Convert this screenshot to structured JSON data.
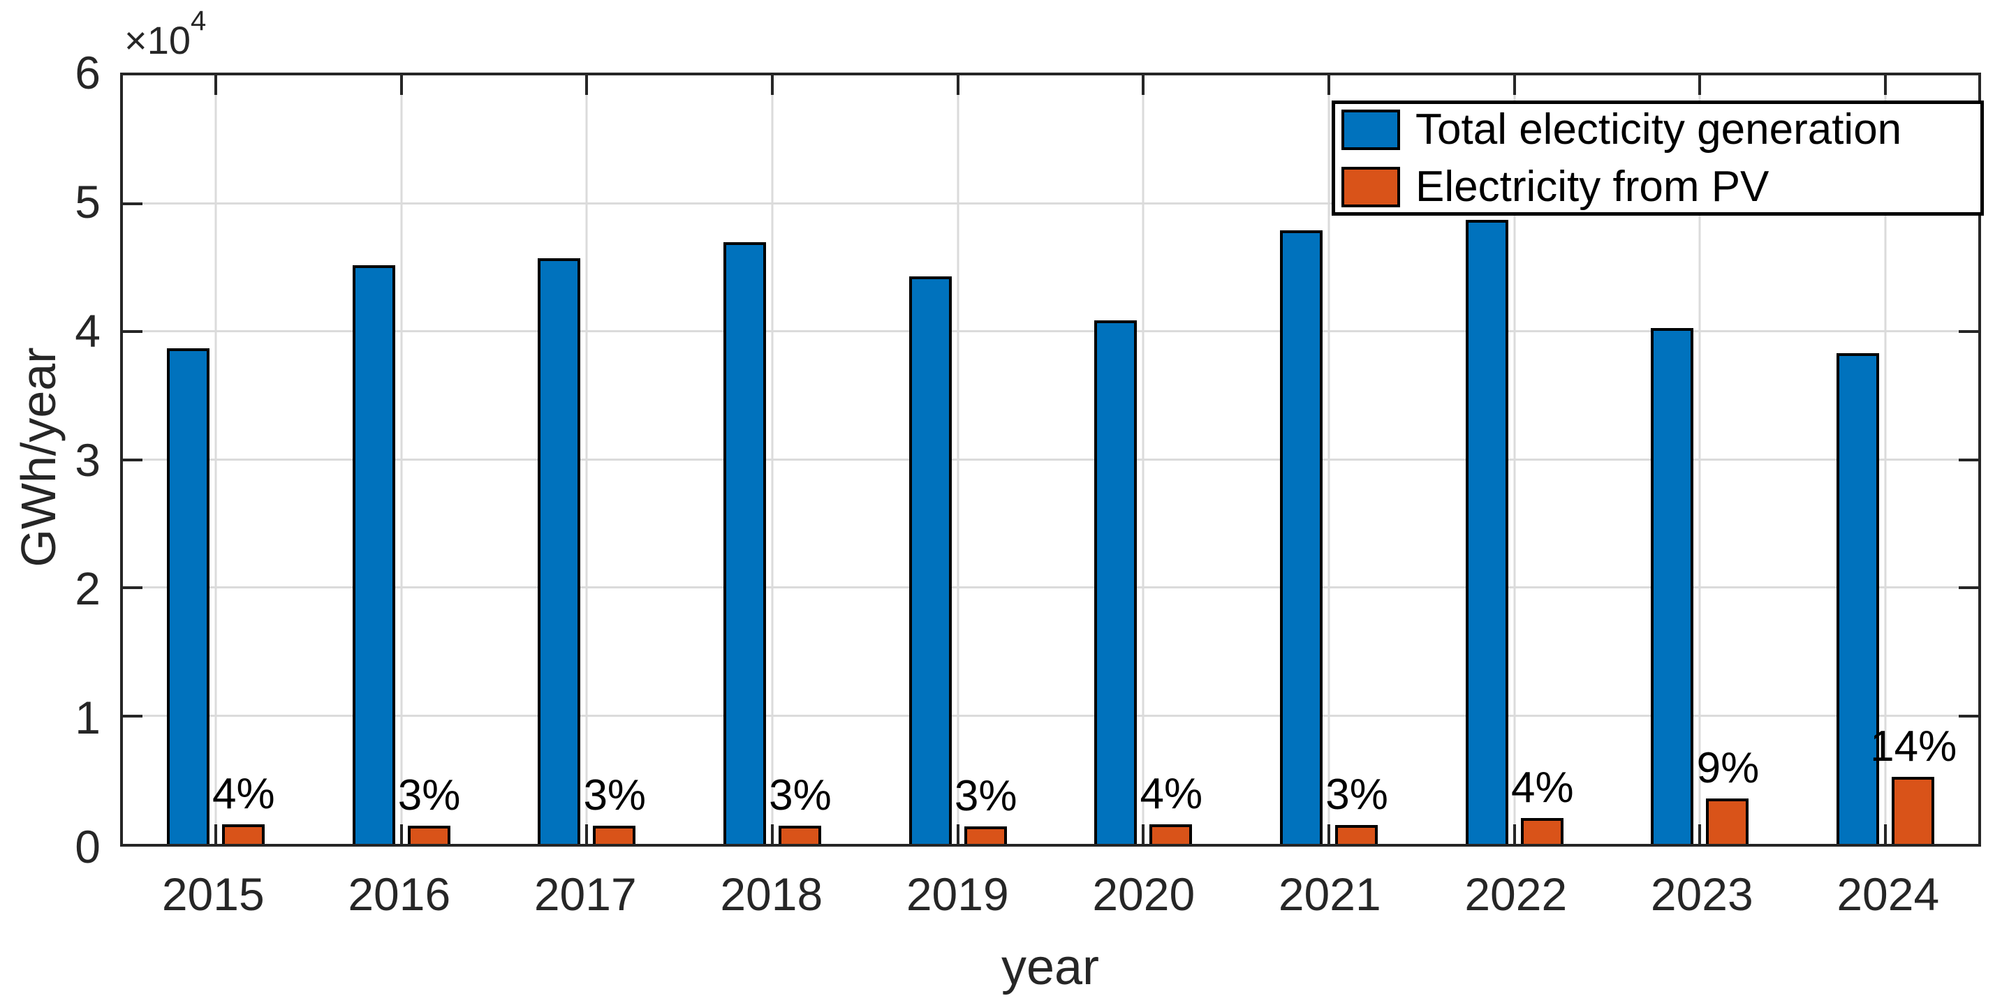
{
  "figure": {
    "y_axis_multiplier": {
      "base": "×10",
      "exponent": "4"
    }
  },
  "chart_data": {
    "type": "bar",
    "title": "",
    "xlabel": "year",
    "ylabel": "GWh/year",
    "categories": [
      "2015",
      "2016",
      "2017",
      "2018",
      "2019",
      "2020",
      "2021",
      "2022",
      "2023",
      "2024"
    ],
    "series": [
      {
        "name": "Total electicity generation",
        "color": "#0072BD",
        "values": [
          38700,
          45200,
          45700,
          47000,
          44300,
          40900,
          47900,
          48700,
          40300,
          38300
        ]
      },
      {
        "name": "Electricity from PV",
        "color": "#D95319",
        "values": [
          1500,
          1400,
          1400,
          1400,
          1350,
          1550,
          1450,
          2000,
          3550,
          5250
        ]
      }
    ],
    "bar_labels": {
      "description": "PV share of total generation, shown above the PV bars",
      "values": [
        "4%",
        "3%",
        "3%",
        "3%",
        "3%",
        "4%",
        "3%",
        "4%",
        "9%",
        "14%"
      ]
    },
    "ylim": [
      0,
      60000
    ],
    "yticks": [
      0,
      10000,
      20000,
      30000,
      40000,
      50000,
      60000
    ],
    "ytick_labels": [
      "0",
      "1",
      "2",
      "3",
      "4",
      "5",
      "6"
    ],
    "ytick_scale": 10000,
    "grid": true,
    "legend_position": "northeast",
    "colors": {
      "axis": "#262626",
      "grid": "#DBDBDB",
      "bar_edge": "#000000",
      "background": "#FFFFFF"
    }
  }
}
